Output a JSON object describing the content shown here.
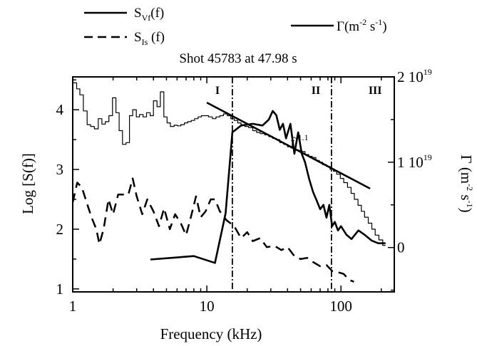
{
  "chart_data": {
    "type": "line",
    "title": "Shot 45783 at 47.98 s",
    "xlabel": "Frequency (kHz)",
    "ylabel": "Log [S(f)]",
    "y2label": "Γ (m-2 s-1)",
    "x_scale": "log",
    "xlim": [
      1,
      250
    ],
    "ylim": [
      0.95,
      4.55
    ],
    "y2lim": [
      -5.2e+18,
      2e+19
    ],
    "x_ticks": [
      "1",
      "10",
      "100"
    ],
    "y_ticks": [
      "1",
      "2",
      "3",
      "4"
    ],
    "y2_ticks": [
      "0",
      "1 10",
      "2 10"
    ],
    "y2_tick_exp": "19",
    "legend": [
      {
        "series": "S_Vf(f)",
        "main": "S",
        "sub": "Vf",
        "tail": "(f)",
        "style": "solid"
      },
      {
        "series": "S_Is(f)",
        "main": "S",
        "sub": "Is",
        "tail": " (f)",
        "style": "dashed"
      },
      {
        "series": "Gamma",
        "main": "Γ",
        "tail": "(m-2 s-1)",
        "style": "solid"
      }
    ],
    "vlines": [
      15.5,
      85
    ],
    "regions": [
      {
        "label": "I",
        "x": 12
      },
      {
        "label": "II",
        "x": 65
      },
      {
        "label": "III",
        "x": 180
      }
    ],
    "fit_annotation": {
      "base": "f",
      "exponent": "-1.1",
      "x": 42,
      "y": 3.5
    },
    "series": [
      {
        "name": "S_Vf(f)",
        "axis": "left",
        "style": "stair",
        "x": [
          1.0,
          1.07,
          1.13,
          1.2,
          1.28,
          1.36,
          1.45,
          1.55,
          1.65,
          1.75,
          1.86,
          1.98,
          2.1,
          2.22,
          2.35,
          2.5,
          2.65,
          2.8,
          2.98,
          3.15,
          3.35,
          3.55,
          3.78,
          4.0,
          4.25,
          4.5,
          4.78,
          5.05,
          5.35,
          5.7,
          6.05,
          6.4,
          6.8,
          7.2,
          7.65,
          8.1,
          8.6,
          9.1,
          9.65,
          10.3,
          11.0,
          11.7,
          12.5,
          13.3,
          14.2,
          15.1,
          16.0,
          17.0,
          18.0,
          19.2,
          20.5,
          22.0,
          23.5,
          25.0,
          27.0,
          29.0,
          31.0,
          33.0,
          35.0,
          37.5,
          40.0,
          42.5,
          45.0,
          48.0,
          51.0,
          54.0,
          57.5,
          61.0,
          65.0,
          69.0,
          73.0,
          78.0,
          83.0,
          88.0,
          93.0,
          99.0,
          105.0,
          112.0,
          119.0,
          126.0,
          134.0,
          142.0,
          150.0,
          160.0,
          170.0,
          180.0,
          192.0,
          205.0,
          215.0
        ],
        "values": [
          4.45,
          4.35,
          4.25,
          3.98,
          3.75,
          3.72,
          3.68,
          3.85,
          3.76,
          3.8,
          3.9,
          4.2,
          3.95,
          3.65,
          3.42,
          3.45,
          3.9,
          4.0,
          3.88,
          3.92,
          3.88,
          3.95,
          3.9,
          4.15,
          4.05,
          4.3,
          3.88,
          3.78,
          3.72,
          3.74,
          3.73,
          3.75,
          3.78,
          3.8,
          3.82,
          3.85,
          3.88,
          3.9,
          3.9,
          3.88,
          3.85,
          3.88,
          3.9,
          3.93,
          3.9,
          3.85,
          3.82,
          3.78,
          3.75,
          3.72,
          3.7,
          3.65,
          3.62,
          3.6,
          3.58,
          3.55,
          3.52,
          3.5,
          3.45,
          3.42,
          3.38,
          3.36,
          3.33,
          3.32,
          3.3,
          3.25,
          3.22,
          3.2,
          3.15,
          3.12,
          3.08,
          3.05,
          3.0,
          2.97,
          2.92,
          2.85,
          2.78,
          2.7,
          2.6,
          2.5,
          2.4,
          2.3,
          2.2,
          2.1,
          2.0,
          1.9,
          1.82,
          1.73,
          1.73
        ]
      },
      {
        "name": "S_Is(f)",
        "axis": "left",
        "style": "dashed",
        "x": [
          1.0,
          1.08,
          1.17,
          1.27,
          1.38,
          1.5,
          1.58,
          1.7,
          1.85,
          2.0,
          2.18,
          2.4,
          2.6,
          2.8,
          3.0,
          3.3,
          3.6,
          4.0,
          4.4,
          4.8,
          5.3,
          5.8,
          6.4,
          7.0,
          7.6,
          8.3,
          9.0,
          9.8,
          10.7,
          11.5,
          12.5,
          14.0,
          16.0,
          18.0,
          20.0,
          22.0,
          25.0,
          28.0,
          32.0,
          36.0,
          40.0,
          45.0,
          50.0,
          56.0,
          62.0,
          70.0,
          78.0,
          86.0,
          95.0,
          105.0,
          115.0,
          125.0
        ],
        "values": [
          2.45,
          2.78,
          2.7,
          2.45,
          2.2,
          2.0,
          1.75,
          2.0,
          2.5,
          2.25,
          2.58,
          2.58,
          2.58,
          2.85,
          2.55,
          2.25,
          2.5,
          2.3,
          2.05,
          2.35,
          2.0,
          2.25,
          2.1,
          1.9,
          2.2,
          2.55,
          2.2,
          2.3,
          2.5,
          2.5,
          2.3,
          2.15,
          2.05,
          1.85,
          1.95,
          1.8,
          1.85,
          1.7,
          1.72,
          1.65,
          1.7,
          1.55,
          1.5,
          1.52,
          1.45,
          1.38,
          1.4,
          1.3,
          1.28,
          1.25,
          1.15,
          1.12
        ]
      },
      {
        "name": "Gamma",
        "axis": "right",
        "style": "solid",
        "x": [
          3.8,
          8.0,
          11.5,
          13.8,
          15.5,
          18.0,
          22.0,
          26.0,
          29.0,
          31.0,
          33.0,
          35.0,
          37.0,
          39.0,
          42.0,
          45.0,
          48.0,
          51.0,
          54.0,
          58.0,
          62.0,
          66.0,
          70.0,
          74.0,
          78.0,
          82.0,
          86.0,
          90.0,
          95.0,
          100.0,
          110.0,
          120.0,
          135.0,
          150.0,
          170.0,
          190.0,
          205.0,
          215.0
        ],
        "values": [
          -1.4e+18,
          -1e+18,
          -1.8e+18,
          4e+18,
          1.35e+19,
          1.43e+19,
          1.45e+19,
          1.43e+19,
          1.5e+19,
          1.6e+19,
          1.55e+19,
          1.38e+19,
          1.45e+19,
          1.28e+19,
          1.45e+19,
          1.1e+19,
          1.35e+19,
          1.1e+19,
          1e+19,
          8e+18,
          6.5e+18,
          5.5e+18,
          4.5e+18,
          5e+18,
          3.5e+18,
          5e+18,
          2.5e+18,
          3e+18,
          2e+18,
          2.5e+18,
          1.5e+18,
          1e+18,
          2e+18,
          1.5e+18,
          8e+17,
          5e+17,
          5e+17,
          5e+17
        ]
      },
      {
        "name": "fit f^-1.1",
        "axis": "left",
        "style": "solid",
        "x": [
          10.0,
          165.0
        ],
        "values": [
          4.12,
          2.68
        ]
      }
    ]
  }
}
